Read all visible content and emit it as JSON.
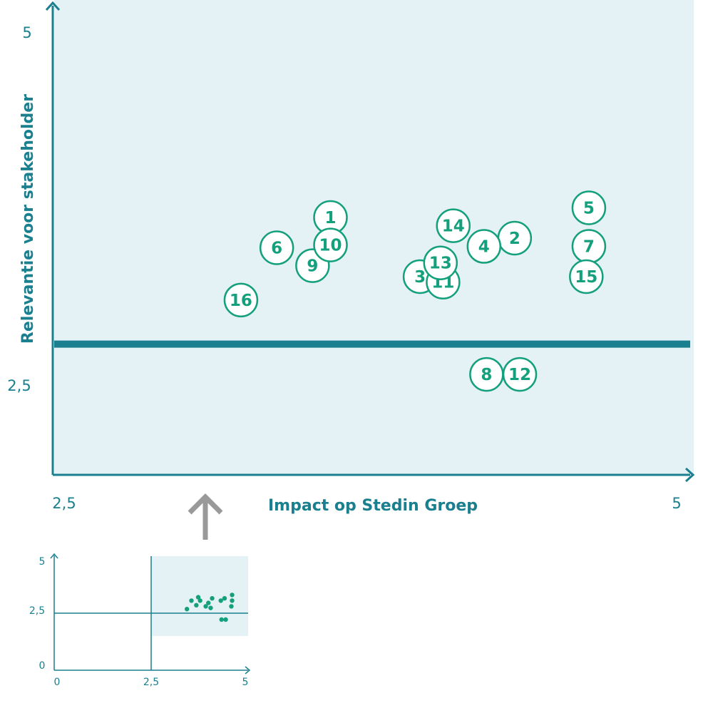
{
  "colors": {
    "accent": "#1a7f8e",
    "point": "#14a07c",
    "plot_bg": "#e4f1f5",
    "arrow": "#999999"
  },
  "chart_data": [
    {
      "type": "scatter",
      "title": "",
      "xlabel": "Impact op Stedin Groep",
      "ylabel": "Relevantie voor stakeholder",
      "xlim": [
        2.5,
        5
      ],
      "ylim": [
        1.55,
        5
      ],
      "x_tick_labels": [
        "2,5",
        "5"
      ],
      "y_tick_labels": [
        "5",
        "2,5"
      ],
      "threshold_y": 2.5,
      "points": [
        {
          "label": "1",
          "x": 3.58,
          "y": 3.42
        },
        {
          "label": "2",
          "x": 4.3,
          "y": 3.27
        },
        {
          "label": "3",
          "x": 3.93,
          "y": 2.99
        },
        {
          "label": "4",
          "x": 4.18,
          "y": 3.21
        },
        {
          "label": "5",
          "x": 4.59,
          "y": 3.49
        },
        {
          "label": "6",
          "x": 3.37,
          "y": 3.2
        },
        {
          "label": "7",
          "x": 4.59,
          "y": 3.21
        },
        {
          "label": "8",
          "x": 4.19,
          "y": 2.28
        },
        {
          "label": "9",
          "x": 3.51,
          "y": 3.07
        },
        {
          "label": "10",
          "x": 3.58,
          "y": 3.22
        },
        {
          "label": "11",
          "x": 4.02,
          "y": 2.95
        },
        {
          "label": "12",
          "x": 4.32,
          "y": 2.28
        },
        {
          "label": "13",
          "x": 4.01,
          "y": 3.09
        },
        {
          "label": "14",
          "x": 4.06,
          "y": 3.36
        },
        {
          "label": "15",
          "x": 4.58,
          "y": 2.99
        },
        {
          "label": "16",
          "x": 3.23,
          "y": 2.82
        }
      ]
    },
    {
      "type": "scatter",
      "title": "",
      "xlim": [
        0,
        5
      ],
      "ylim": [
        0,
        5
      ],
      "x_tick_labels": [
        "0",
        "2,5",
        "5"
      ],
      "y_tick_labels": [
        "5",
        "2,5",
        "0"
      ],
      "highlight_region": {
        "x": [
          2.5,
          5
        ],
        "y": [
          1.5,
          5
        ]
      },
      "points": [
        {
          "x": 3.45,
          "y": 2.68
        },
        {
          "x": 3.57,
          "y": 3.05
        },
        {
          "x": 3.7,
          "y": 2.85
        },
        {
          "x": 3.75,
          "y": 3.2
        },
        {
          "x": 3.8,
          "y": 3.05
        },
        {
          "x": 3.95,
          "y": 2.8
        },
        {
          "x": 4.02,
          "y": 2.95
        },
        {
          "x": 4.08,
          "y": 2.73
        },
        {
          "x": 4.12,
          "y": 3.15
        },
        {
          "x": 4.35,
          "y": 3.05
        },
        {
          "x": 4.45,
          "y": 3.15
        },
        {
          "x": 4.37,
          "y": 2.22
        },
        {
          "x": 4.48,
          "y": 2.22
        },
        {
          "x": 4.65,
          "y": 3.3
        },
        {
          "x": 4.65,
          "y": 3.05
        },
        {
          "x": 4.63,
          "y": 2.8
        }
      ]
    }
  ]
}
